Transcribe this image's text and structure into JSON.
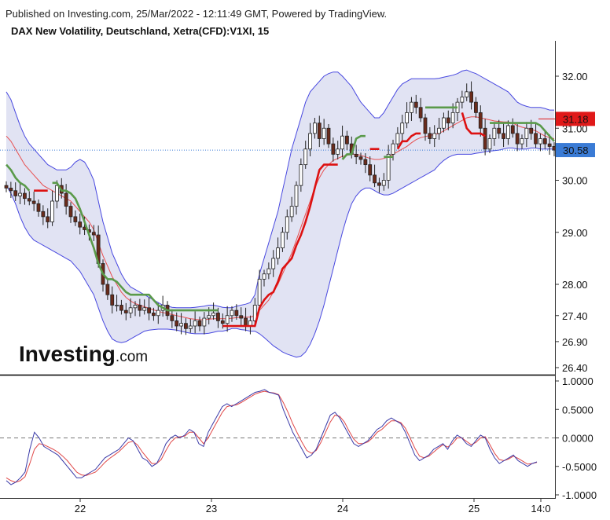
{
  "header": {
    "published": "Published on Investing.com, 25/Mar/2022 - 12:11:49 GMT, Powered by TradingView.",
    "title": "DAX New Volatility, Deutschland, Xetra(CFD):V1XI, 15"
  },
  "logo": {
    "brand": "Investing",
    "suffix": ".com"
  },
  "colors": {
    "band_fill": "#e1e3f3",
    "band_line": "#4848e0",
    "sma_line": "#e85050",
    "supertrend_up": "#dd1111",
    "supertrend_down": "#5a9a4a",
    "candle_up": "#2a2a2a",
    "candle_down": "#6b2b1b",
    "current_price_line": "#3a7bd5",
    "price_tag_red": "#e01919",
    "price_tag_blue": "#3a7bd5",
    "osc_main": "#3b3ba8",
    "osc_signal": "#e04848",
    "zero_line": "#777777"
  },
  "chart_data": [
    {
      "type": "candlestick",
      "y_ticks": [
        "32.00",
        "31.00",
        "30.00",
        "29.00",
        "28.00",
        "27.40",
        "26.90",
        "26.40"
      ],
      "ylim": [
        26.4,
        32.3
      ],
      "x_ticks": [
        "22",
        "23",
        "24",
        "25",
        "14:0"
      ],
      "current_price_label": "30.58",
      "upper_tag_label": "31.18",
      "close": [
        29.85,
        29.8,
        29.7,
        29.75,
        29.65,
        29.6,
        29.55,
        29.4,
        29.3,
        29.2,
        29.6,
        29.9,
        29.75,
        29.5,
        29.3,
        29.2,
        29.1,
        29.05,
        29.0,
        28.95,
        28.4,
        28.0,
        27.8,
        27.6,
        27.6,
        27.5,
        27.45,
        27.55,
        27.6,
        27.5,
        27.55,
        27.45,
        27.4,
        27.5,
        27.6,
        27.4,
        27.3,
        27.2,
        27.25,
        27.15,
        27.2,
        27.3,
        27.2,
        27.35,
        27.4,
        27.45,
        27.3,
        27.25,
        27.4,
        27.5,
        27.4,
        27.35,
        27.2,
        27.3,
        27.6,
        28.1,
        28.2,
        28.3,
        28.5,
        28.7,
        29.0,
        29.3,
        29.5,
        29.9,
        30.3,
        30.6,
        30.9,
        31.1,
        30.8,
        31.0,
        30.7,
        30.5,
        30.6,
        30.85,
        30.7,
        30.5,
        30.45,
        30.4,
        30.3,
        30.1,
        29.95,
        29.9,
        30.0,
        30.5,
        30.7,
        30.9,
        31.1,
        31.3,
        31.5,
        31.4,
        31.2,
        30.9,
        30.8,
        30.9,
        31.0,
        31.2,
        31.1,
        31.3,
        31.5,
        31.6,
        31.7,
        31.5,
        31.3,
        31.0,
        30.6,
        30.8,
        31.0,
        30.9,
        30.8,
        31.05,
        30.9,
        30.7,
        30.8,
        31.0,
        30.9,
        30.7,
        30.8,
        30.7,
        30.65,
        30.58
      ],
      "upper_band": [
        31.7,
        31.55,
        31.3,
        31.05,
        30.85,
        30.7,
        30.6,
        30.5,
        30.4,
        30.3,
        30.25,
        30.2,
        30.2,
        30.2,
        30.25,
        30.35,
        30.4,
        30.35,
        30.2,
        30.0,
        29.6,
        29.2,
        28.9,
        28.6,
        28.4,
        28.2,
        28.05,
        27.95,
        27.9,
        27.85,
        27.8,
        27.75,
        27.7,
        27.65,
        27.6,
        27.58,
        27.56,
        27.55,
        27.55,
        27.55,
        27.55,
        27.56,
        27.57,
        27.58,
        27.6,
        27.6,
        27.58,
        27.56,
        27.55,
        27.55,
        27.58,
        27.6,
        27.62,
        27.65,
        27.8,
        28.2,
        28.5,
        28.8,
        29.1,
        29.4,
        29.8,
        30.2,
        30.6,
        30.9,
        31.2,
        31.5,
        31.7,
        31.8,
        31.9,
        32.0,
        32.05,
        32.08,
        32.08,
        32.0,
        31.9,
        31.8,
        31.65,
        31.5,
        31.4,
        31.3,
        31.2,
        31.2,
        31.3,
        31.45,
        31.6,
        31.75,
        31.85,
        31.9,
        31.95,
        31.95,
        31.95,
        31.95,
        31.95,
        31.95,
        31.96,
        31.98,
        32.0,
        32.02,
        32.05,
        32.1,
        32.12,
        32.08,
        32.05,
        32.0,
        31.95,
        31.9,
        31.85,
        31.8,
        31.75,
        31.7,
        31.6,
        31.5,
        31.45,
        31.42,
        31.4,
        31.4,
        31.4,
        31.38,
        31.35,
        31.35
      ],
      "lower_band": [
        29.9,
        29.75,
        29.55,
        29.3,
        29.1,
        28.95,
        28.85,
        28.8,
        28.75,
        28.7,
        28.65,
        28.6,
        28.55,
        28.5,
        28.45,
        28.35,
        28.25,
        28.1,
        27.95,
        27.8,
        27.55,
        27.3,
        27.1,
        26.95,
        26.9,
        26.88,
        26.9,
        26.95,
        27.0,
        27.05,
        27.1,
        27.12,
        27.13,
        27.14,
        27.14,
        27.14,
        27.13,
        27.12,
        27.1,
        27.08,
        27.06,
        27.05,
        27.05,
        27.05,
        27.06,
        27.08,
        27.1,
        27.1,
        27.12,
        27.15,
        27.15,
        27.13,
        27.12,
        27.1,
        27.1,
        27.05,
        26.98,
        26.9,
        26.82,
        26.76,
        26.7,
        26.66,
        26.63,
        26.6,
        26.62,
        26.7,
        26.85,
        27.05,
        27.3,
        27.6,
        27.95,
        28.3,
        28.65,
        29.0,
        29.3,
        29.55,
        29.7,
        29.8,
        29.85,
        29.85,
        29.8,
        29.75,
        29.72,
        29.72,
        29.75,
        29.8,
        29.85,
        29.9,
        29.95,
        30.0,
        30.05,
        30.1,
        30.15,
        30.2,
        30.3,
        30.38,
        30.44,
        30.48,
        30.5,
        30.5,
        30.5,
        30.5,
        30.52,
        30.53,
        30.55,
        30.56,
        30.57,
        30.58,
        30.6,
        30.62,
        30.62,
        30.6,
        30.6,
        30.6,
        30.62,
        30.62,
        30.6,
        30.6,
        30.6,
        30.6
      ],
      "sma": [
        30.85,
        30.75,
        30.6,
        30.45,
        30.3,
        30.2,
        30.1,
        30.0,
        29.9,
        29.85,
        29.8,
        29.75,
        29.7,
        29.65,
        29.6,
        29.5,
        29.4,
        29.3,
        29.2,
        29.05,
        28.8,
        28.55,
        28.35,
        28.15,
        28.0,
        27.85,
        27.75,
        27.68,
        27.63,
        27.6,
        27.57,
        27.54,
        27.51,
        27.48,
        27.46,
        27.44,
        27.42,
        27.4,
        27.38,
        27.36,
        27.34,
        27.33,
        27.32,
        27.32,
        27.33,
        27.34,
        27.34,
        27.34,
        27.34,
        27.35,
        27.36,
        27.37,
        27.37,
        27.37,
        27.4,
        27.5,
        27.6,
        27.7,
        27.85,
        28.0,
        28.2,
        28.4,
        28.6,
        28.85,
        29.1,
        29.35,
        29.6,
        29.85,
        30.05,
        30.2,
        30.3,
        30.38,
        30.42,
        30.46,
        30.48,
        30.5,
        30.5,
        30.48,
        30.45,
        30.42,
        30.4,
        30.4,
        30.42,
        30.45,
        30.5,
        30.55,
        30.6,
        30.65,
        30.72,
        30.78,
        30.82,
        30.84,
        30.86,
        30.88,
        30.9,
        30.95,
        31.0,
        31.05,
        31.1,
        31.15,
        31.2,
        31.22,
        31.22,
        31.2,
        31.18,
        31.16,
        31.14,
        31.13,
        31.12,
        31.12,
        31.1,
        31.05,
        31.02,
        31.0,
        30.98,
        30.95,
        30.9,
        30.85,
        30.82,
        30.8
      ],
      "supertrend": [
        30.3,
        30.2,
        30.05,
        29.95,
        29.9,
        29.8,
        29.8,
        29.8,
        29.8,
        29.8,
        29.95,
        29.95,
        29.8,
        29.8,
        29.75,
        29.65,
        29.45,
        29.2,
        28.95,
        28.7,
        28.4,
        28.2,
        28.1,
        28.1,
        28.05,
        27.95,
        27.85,
        27.8,
        27.8,
        27.8,
        27.8,
        27.8,
        27.7,
        27.6,
        27.55,
        27.5,
        27.5,
        27.5,
        27.5,
        27.5,
        27.5,
        27.5,
        27.5,
        27.5,
        27.5,
        27.5,
        27.5,
        27.2,
        27.2,
        27.2,
        27.2,
        27.2,
        27.2,
        27.2,
        27.2,
        27.55,
        27.7,
        27.8,
        27.85,
        28.05,
        28.3,
        28.4,
        28.5,
        28.75,
        28.95,
        29.2,
        29.5,
        29.85,
        30.2,
        30.3,
        30.3,
        30.3,
        30.3,
        30.4,
        30.5,
        30.5,
        30.8,
        30.85,
        30.85,
        30.6,
        30.6,
        30.6,
        30.45,
        30.45,
        30.45,
        30.6,
        30.75,
        30.75,
        30.85,
        30.9,
        30.9,
        31.4,
        31.4,
        31.4,
        31.4,
        31.4,
        31.4,
        31.4,
        31.4,
        31.3,
        31.0,
        30.9,
        30.9,
        30.9,
        30.85,
        31.1,
        31.1,
        31.1,
        31.1,
        31.1,
        31.1,
        31.1,
        31.1,
        31.1,
        31.1,
        31.1,
        31.05,
        30.95,
        30.85,
        30.75
      ],
      "supertrend_direction": [
        "down",
        "down",
        "down",
        "down",
        "down",
        "down",
        "up",
        "up",
        "up",
        "up",
        "down",
        "down",
        "down",
        "down",
        "down",
        "down",
        "down",
        "down",
        "down",
        "down",
        "down",
        "down",
        "down",
        "down",
        "down",
        "down",
        "down",
        "down",
        "down",
        "down",
        "down",
        "down",
        "down",
        "down",
        "down",
        "down",
        "down",
        "down",
        "down",
        "down",
        "down",
        "down",
        "down",
        "down",
        "down",
        "down",
        "down",
        "up",
        "up",
        "up",
        "up",
        "up",
        "up",
        "up",
        "up",
        "up",
        "up",
        "up",
        "up",
        "up",
        "up",
        "up",
        "up",
        "up",
        "up",
        "up",
        "up",
        "up",
        "up",
        "up",
        "up",
        "up",
        "up",
        "down",
        "down",
        "down",
        "down",
        "down",
        "down",
        "up",
        "up",
        "up",
        "down",
        "down",
        "down",
        "up",
        "up",
        "up",
        "up",
        "up",
        "up",
        "down",
        "down",
        "down",
        "down",
        "down",
        "down",
        "down",
        "down",
        "up",
        "up",
        "up",
        "up",
        "up",
        "up",
        "down",
        "down",
        "down",
        "down",
        "down",
        "down",
        "down",
        "down",
        "down",
        "down",
        "down",
        "down",
        "down",
        "down",
        "down"
      ]
    },
    {
      "type": "line",
      "y_ticks": [
        "1.0000",
        "0.5000",
        "0.0000",
        "-0.5000",
        "-1.0000"
      ],
      "ylim": [
        -1.0,
        1.0
      ],
      "series": [
        {
          "values": [
            -0.75,
            -0.82,
            -0.78,
            -0.7,
            -0.6,
            -0.2,
            0.1,
            0.0,
            -0.15,
            -0.2,
            -0.25,
            -0.3,
            -0.4,
            -0.5,
            -0.6,
            -0.7,
            -0.7,
            -0.65,
            -0.6,
            -0.55,
            -0.45,
            -0.35,
            -0.3,
            -0.25,
            -0.2,
            -0.1,
            0.0,
            -0.05,
            -0.2,
            -0.35,
            -0.4,
            -0.5,
            -0.45,
            -0.3,
            -0.1,
            0.0,
            0.05,
            0.0,
            0.05,
            0.15,
            0.1,
            -0.1,
            -0.15,
            0.1,
            0.25,
            0.4,
            0.55,
            0.6,
            0.55,
            0.6,
            0.65,
            0.7,
            0.75,
            0.8,
            0.82,
            0.85,
            0.8,
            0.78,
            0.75,
            0.5,
            0.3,
            0.1,
            -0.05,
            -0.2,
            -0.35,
            -0.3,
            -0.2,
            0.0,
            0.2,
            0.4,
            0.45,
            0.35,
            0.2,
            0.05,
            -0.1,
            -0.15,
            -0.1,
            -0.05,
            0.05,
            0.15,
            0.2,
            0.3,
            0.35,
            0.3,
            0.25,
            0.1,
            -0.1,
            -0.3,
            -0.4,
            -0.35,
            -0.3,
            -0.2,
            -0.15,
            -0.1,
            -0.2,
            -0.05,
            0.05,
            0.0,
            -0.1,
            -0.15,
            -0.05,
            0.05,
            0.0,
            -0.2,
            -0.35,
            -0.45,
            -0.4,
            -0.35,
            -0.3,
            -0.4,
            -0.45,
            -0.5,
            -0.45,
            -0.42
          ]
        },
        {
          "values": [
            -0.7,
            -0.75,
            -0.78,
            -0.75,
            -0.68,
            -0.45,
            -0.2,
            -0.1,
            -0.12,
            -0.16,
            -0.2,
            -0.25,
            -0.32,
            -0.4,
            -0.5,
            -0.6,
            -0.65,
            -0.66,
            -0.63,
            -0.6,
            -0.52,
            -0.43,
            -0.36,
            -0.3,
            -0.24,
            -0.16,
            -0.08,
            -0.06,
            -0.13,
            -0.25,
            -0.35,
            -0.45,
            -0.45,
            -0.38,
            -0.22,
            -0.08,
            0.0,
            0.02,
            0.03,
            0.1,
            0.1,
            0.0,
            -0.1,
            0.0,
            0.15,
            0.3,
            0.45,
            0.55,
            0.57,
            0.58,
            0.62,
            0.67,
            0.72,
            0.77,
            0.8,
            0.82,
            0.8,
            0.79,
            0.76,
            0.62,
            0.45,
            0.25,
            0.08,
            -0.08,
            -0.22,
            -0.27,
            -0.22,
            -0.08,
            0.1,
            0.28,
            0.4,
            0.38,
            0.28,
            0.12,
            -0.02,
            -0.1,
            -0.1,
            -0.07,
            0.0,
            0.1,
            0.15,
            0.23,
            0.3,
            0.3,
            0.27,
            0.17,
            0.0,
            -0.18,
            -0.32,
            -0.35,
            -0.32,
            -0.25,
            -0.18,
            -0.12,
            -0.16,
            -0.1,
            0.0,
            0.0,
            -0.06,
            -0.12,
            -0.08,
            0.0,
            0.02,
            -0.12,
            -0.27,
            -0.38,
            -0.4,
            -0.37,
            -0.32,
            -0.36,
            -0.41,
            -0.46,
            -0.45,
            -0.43
          ]
        }
      ]
    }
  ]
}
